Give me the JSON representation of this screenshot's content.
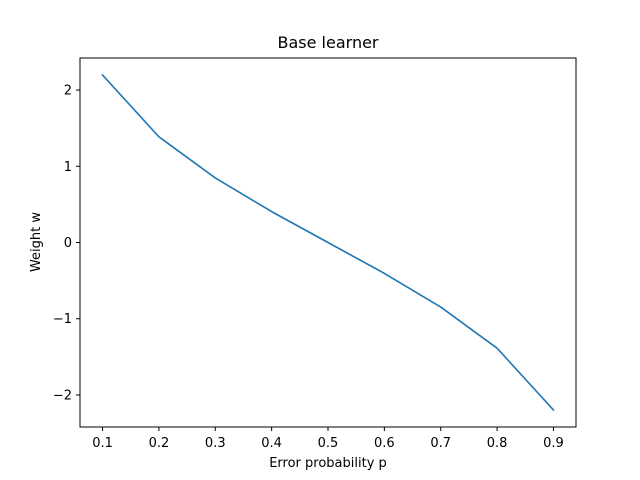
{
  "chart_data": {
    "type": "line",
    "title": "Base learner",
    "xlabel": "Error probability p",
    "ylabel": "Weight w",
    "xlim": [
      0.06,
      0.94
    ],
    "ylim": [
      -2.42,
      2.42
    ],
    "xticks": [
      0.1,
      0.2,
      0.3,
      0.4,
      0.5,
      0.6,
      0.7,
      0.8,
      0.9
    ],
    "xtick_labels": [
      "0.1",
      "0.2",
      "0.3",
      "0.4",
      "0.5",
      "0.6",
      "0.7",
      "0.8",
      "0.9"
    ],
    "yticks": [
      -2,
      -1,
      0,
      1,
      2
    ],
    "ytick_labels": [
      "−2",
      "−1",
      "0",
      "1",
      "2"
    ],
    "grid": false,
    "series": [
      {
        "color": "#1f77b4",
        "x": [
          0.1,
          0.2,
          0.3,
          0.4,
          0.5,
          0.6,
          0.7,
          0.8,
          0.9
        ],
        "y": [
          2.197,
          1.386,
          0.847,
          0.405,
          0.0,
          -0.405,
          -0.847,
          -1.386,
          -2.197
        ]
      }
    ]
  }
}
